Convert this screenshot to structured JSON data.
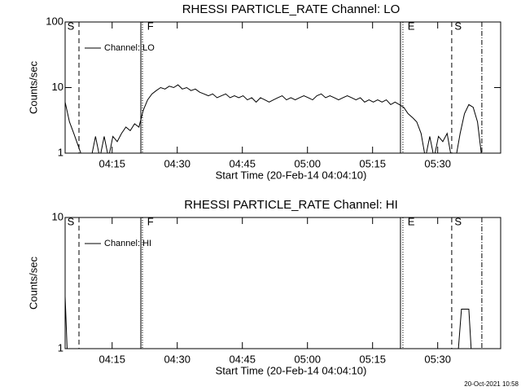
{
  "timestamp": "20-Oct-2021 10:58",
  "chart_data": [
    {
      "type": "line",
      "title": "RHESSI PARTICLE_RATE Channel: LO",
      "xlabel": "Start Time (20-Feb-14 04:04:10)",
      "ylabel": "Counts/sec",
      "log_y": true,
      "legend": "upper left",
      "xlim": [
        0,
        100.33
      ],
      "ylim": [
        1,
        100
      ],
      "xticks": [
        {
          "value": 10.83,
          "label": "04:15"
        },
        {
          "value": 25.83,
          "label": "04:30"
        },
        {
          "value": 40.83,
          "label": "04:45"
        },
        {
          "value": 55.83,
          "label": "05:00"
        },
        {
          "value": 70.83,
          "label": "05:15"
        },
        {
          "value": 85.83,
          "label": "05:30"
        }
      ],
      "yticks": [
        1,
        10,
        100
      ],
      "x": [
        0,
        1,
        2,
        3,
        4,
        5,
        6,
        7,
        8,
        9,
        10,
        11,
        12,
        13,
        14,
        15,
        16,
        17,
        18,
        19,
        20,
        21,
        22,
        23,
        24,
        25,
        26,
        27,
        28,
        29,
        30,
        31,
        32,
        33,
        34,
        35,
        36,
        37,
        38,
        39,
        40,
        41,
        42,
        43,
        44,
        45,
        46,
        47,
        48,
        49,
        50,
        51,
        52,
        53,
        54,
        55,
        56,
        57,
        58,
        59,
        60,
        61,
        62,
        63,
        64,
        65,
        66,
        67,
        68,
        69,
        70,
        71,
        72,
        73,
        74,
        75,
        76,
        77,
        78,
        79,
        80,
        81,
        82,
        83,
        84,
        85,
        86,
        87,
        88,
        89,
        90,
        91,
        92,
        93,
        94,
        95,
        96
      ],
      "series": [
        {
          "name": "Channel: LO",
          "color": "#000000",
          "values": [
            6,
            3,
            2,
            1.3,
            0,
            0,
            0,
            1.8,
            0,
            1.8,
            0,
            1.8,
            1.5,
            2,
            2.5,
            2.2,
            2.8,
            2.5,
            4.5,
            6.5,
            8,
            9,
            10,
            9.5,
            10.5,
            10,
            11,
            9.5,
            10,
            9,
            9.5,
            8.5,
            8,
            7.5,
            8,
            7,
            7.5,
            8,
            7,
            7.5,
            7,
            7.5,
            6.5,
            7,
            6,
            7,
            6.5,
            6,
            6.5,
            7,
            7.5,
            6.5,
            7,
            6.5,
            7,
            7.5,
            7,
            6.5,
            7.5,
            8,
            7,
            7.5,
            7,
            6.5,
            7,
            7.5,
            7,
            6.5,
            7,
            6,
            6.5,
            6,
            6.5,
            6,
            6.5,
            5.5,
            6,
            5.5,
            5,
            4,
            3.5,
            3,
            2,
            0,
            1.8,
            0,
            1.8,
            1.5,
            2,
            0,
            0,
            2,
            4,
            5.5,
            5,
            3,
            0
          ]
        }
      ],
      "events": [
        {
          "x": 3.19,
          "style": "dashed"
        },
        {
          "x": 17.44,
          "style": "solid"
        },
        {
          "x": 17.81,
          "style": "dotted"
        },
        {
          "x": 77.25,
          "style": "solid"
        },
        {
          "x": 77.81,
          "style": "dotted"
        },
        {
          "x": 89.06,
          "style": "dashed"
        },
        {
          "x": 96.0,
          "style": "dashdot"
        }
      ],
      "event_labels": [
        {
          "text": "S",
          "x": 0.5
        },
        {
          "text": "F",
          "x": 18.9
        },
        {
          "text": "E",
          "x": 78.9
        },
        {
          "text": "S",
          "x": 89.7
        }
      ]
    },
    {
      "type": "line",
      "title": "RHESSI PARTICLE_RATE Channel: HI",
      "xlabel": "Start Time (20-Feb-14 04:04:10)",
      "ylabel": "Counts/sec",
      "log_y": true,
      "legend": "upper left",
      "xlim": [
        0,
        100.33
      ],
      "ylim": [
        1,
        10
      ],
      "xticks": [
        {
          "value": 10.83,
          "label": "04:15"
        },
        {
          "value": 25.83,
          "label": "04:30"
        },
        {
          "value": 40.83,
          "label": "04:45"
        },
        {
          "value": 55.83,
          "label": "05:00"
        },
        {
          "value": 70.83,
          "label": "05:15"
        },
        {
          "value": 85.83,
          "label": "05:30"
        }
      ],
      "yticks": [
        1,
        10
      ],
      "x": [
        0,
        0.5,
        90,
        90.6,
        91.3,
        93,
        93.6
      ],
      "series": [
        {
          "name": "Channel: HI",
          "color": "#000000",
          "values": [
            2.5,
            0,
            0,
            1,
            2,
            2,
            0
          ]
        }
      ],
      "events": [
        {
          "x": 3.19,
          "style": "dashed"
        },
        {
          "x": 17.44,
          "style": "solid"
        },
        {
          "x": 17.81,
          "style": "dotted"
        },
        {
          "x": 77.25,
          "style": "solid"
        },
        {
          "x": 77.81,
          "style": "dotted"
        },
        {
          "x": 89.06,
          "style": "dashed"
        },
        {
          "x": 96.0,
          "style": "dashdot"
        }
      ],
      "event_labels": [
        {
          "text": "S",
          "x": 0.5
        },
        {
          "text": "F",
          "x": 18.9
        },
        {
          "text": "E",
          "x": 78.9
        },
        {
          "text": "S",
          "x": 89.7
        }
      ]
    }
  ]
}
